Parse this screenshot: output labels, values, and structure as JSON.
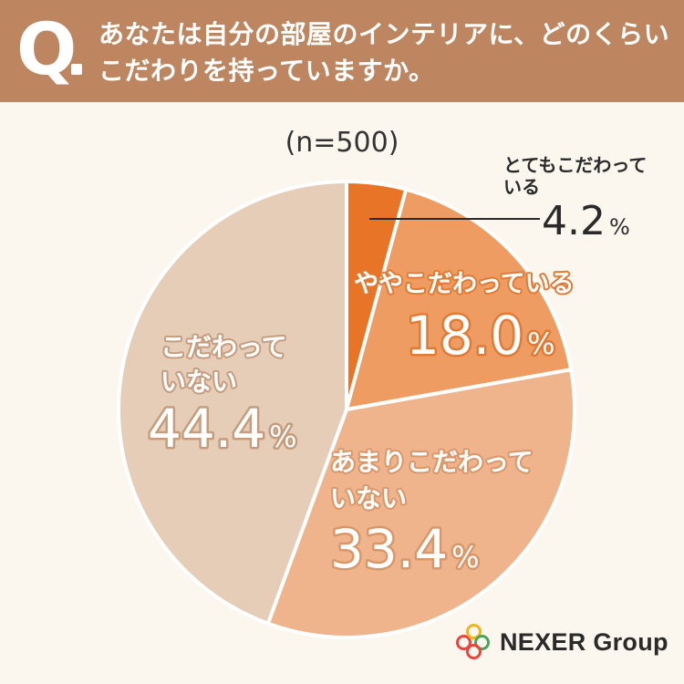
{
  "header": {
    "q_letter": "Q",
    "question_line1": "あなたは自分の部屋のインテリアに、どのくらい",
    "question_line2": "こだわりを持っていますか。"
  },
  "chart_data": {
    "type": "pie",
    "sample_size": "(n=500)",
    "start_angle": "12 o'clock",
    "direction": "clockwise",
    "slices": [
      {
        "label": "とてもこだわっている",
        "label_line1": "とてもこだわって",
        "label_line2": "いる",
        "value": 4.2,
        "value_text": "4.2",
        "color": "#e87428"
      },
      {
        "label": "ややこだわっている",
        "label_line1": "ややこだわっている",
        "label_line2": "",
        "value": 18.0,
        "value_text": "18.0",
        "color": "#ef9c63"
      },
      {
        "label": "あまりこだわっていない",
        "label_line1": "あまりこだわって",
        "label_line2": "いない",
        "value": 33.4,
        "value_text": "33.4",
        "color": "#f0b48d"
      },
      {
        "label": "こだわっていない",
        "label_line1": "こだわって",
        "label_line2": "いない",
        "value": 44.4,
        "value_text": "44.4",
        "color": "#e6cdb8"
      }
    ],
    "unit": "%"
  },
  "logo": {
    "text": "NEXER Group",
    "colors": [
      "#e8453c",
      "#f2b31b",
      "#4aa35a",
      "#e8453c"
    ]
  }
}
